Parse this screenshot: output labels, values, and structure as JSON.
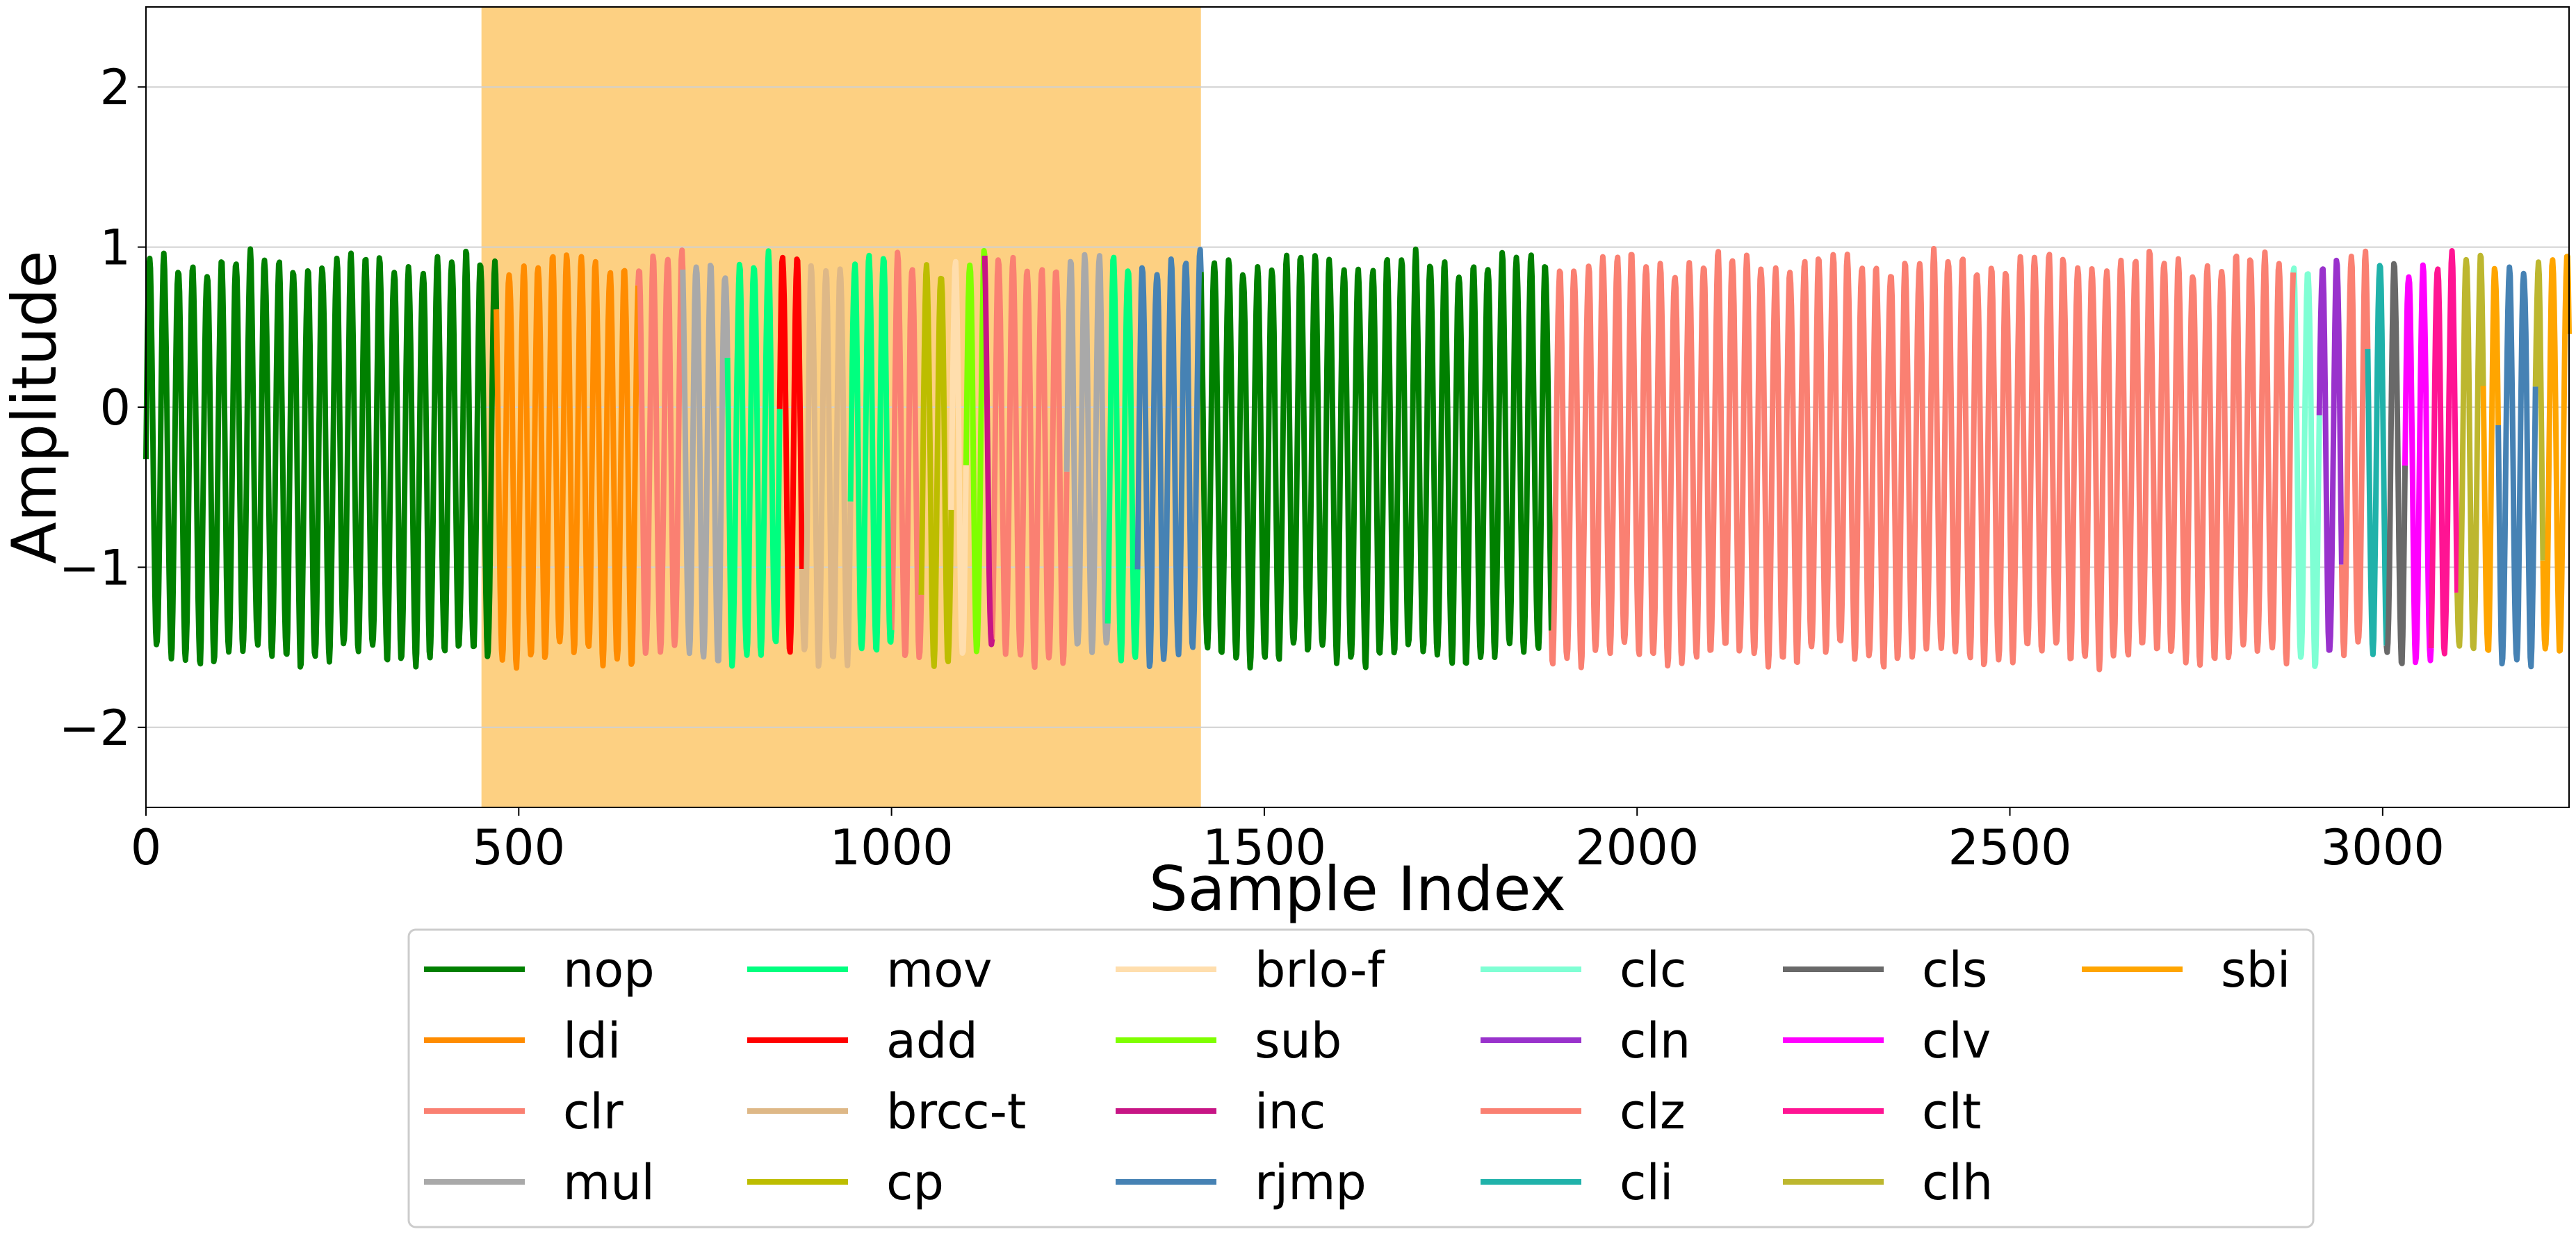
{
  "chart_data": {
    "type": "line",
    "title": "",
    "xlabel": "Sample Index",
    "ylabel": "Amplitude",
    "xlim": [
      0,
      3250
    ],
    "ylim": [
      -2.5,
      2.5
    ],
    "x_ticks": [
      0,
      500,
      1000,
      1500,
      2000,
      2500,
      3000
    ],
    "x_tick_labels": [
      "0",
      "500",
      "1000",
      "1500",
      "2000",
      "2500",
      "3000"
    ],
    "y_ticks": [
      -2,
      -1,
      0,
      1,
      2
    ],
    "y_tick_labels": [
      "−2",
      "−1",
      "0",
      "1",
      "2"
    ],
    "grid": "horizontal",
    "legend_placement": "below",
    "highlight_region": {
      "x": [
        450,
        1415
      ],
      "color": "#fdd082"
    },
    "series": [
      {
        "name": "nop",
        "color": "#008000",
        "ranges": [
          [
            0,
            470
          ],
          [
            1415,
            1885
          ]
        ]
      },
      {
        "name": "ldi",
        "color": "#ff8c00",
        "ranges": [
          [
            470,
            660
          ]
        ]
      },
      {
        "name": "clr",
        "color": "#fa8072",
        "ranges": [
          [
            660,
            720
          ],
          [
            1000,
            1040
          ],
          [
            1135,
            1235
          ]
        ]
      },
      {
        "name": "mul",
        "color": "#a9a9a9",
        "ranges": [
          [
            720,
            780
          ],
          [
            1235,
            1290
          ]
        ]
      },
      {
        "name": "mov",
        "color": "#00ff7f",
        "ranges": [
          [
            780,
            850
          ],
          [
            945,
            1000
          ],
          [
            1290,
            1330
          ]
        ]
      },
      {
        "name": "add",
        "color": "#ff0000",
        "ranges": [
          [
            850,
            880
          ]
        ]
      },
      {
        "name": "brcc-t",
        "color": "#deb887",
        "ranges": [
          [
            880,
            945
          ]
        ]
      },
      {
        "name": "cp",
        "color": "#bdbd00",
        "ranges": [
          [
            1040,
            1080
          ]
        ]
      },
      {
        "name": "brlo-f",
        "color": "#ffdead",
        "ranges": [
          [
            1080,
            1100
          ]
        ]
      },
      {
        "name": "sub",
        "color": "#7fff00",
        "ranges": [
          [
            1100,
            1125
          ]
        ]
      },
      {
        "name": "inc",
        "color": "#c71585",
        "ranges": [
          [
            1125,
            1135
          ]
        ]
      },
      {
        "name": "rjmp",
        "color": "#4682b4",
        "ranges": [
          [
            1330,
            1415
          ],
          [
            3155,
            3205
          ]
        ]
      },
      {
        "name": "clc",
        "color": "#7fffd4",
        "ranges": [
          [
            2880,
            2915
          ]
        ]
      },
      {
        "name": "cln",
        "color": "#9932cc",
        "ranges": [
          [
            2915,
            2945
          ]
        ]
      },
      {
        "name": "clz",
        "color": "#fa8072",
        "ranges": [
          [
            1885,
            2880
          ],
          [
            2945,
            2980
          ]
        ]
      },
      {
        "name": "cli",
        "color": "#20b2aa",
        "ranges": [
          [
            2980,
            3005
          ]
        ]
      },
      {
        "name": "cls",
        "color": "#696969",
        "ranges": [
          [
            3005,
            3030
          ]
        ]
      },
      {
        "name": "clv",
        "color": "#ff00ff",
        "ranges": [
          [
            3030,
            3065
          ]
        ]
      },
      {
        "name": "clt",
        "color": "#ff1493",
        "ranges": [
          [
            3065,
            3100
          ]
        ]
      },
      {
        "name": "clh",
        "color": "#bdb72f",
        "ranges": [
          [
            3100,
            3135
          ],
          [
            3205,
            3215
          ]
        ]
      },
      {
        "name": "sbi",
        "color": "#ffa500",
        "ranges": [
          [
            3135,
            3155
          ],
          [
            3215,
            3250
          ]
        ]
      }
    ],
    "legend_order": [
      "nop",
      "ldi",
      "clr",
      "mul",
      "mov",
      "add",
      "brcc-t",
      "cp",
      "brlo-f",
      "sub",
      "inc",
      "rjmp",
      "clc",
      "cln",
      "clz",
      "cli",
      "cls",
      "clv",
      "clt",
      "clh",
      "sbi"
    ],
    "waveform": {
      "period": 19.3,
      "peak": 0.9,
      "trough": -1.55,
      "line_width": 8
    }
  }
}
